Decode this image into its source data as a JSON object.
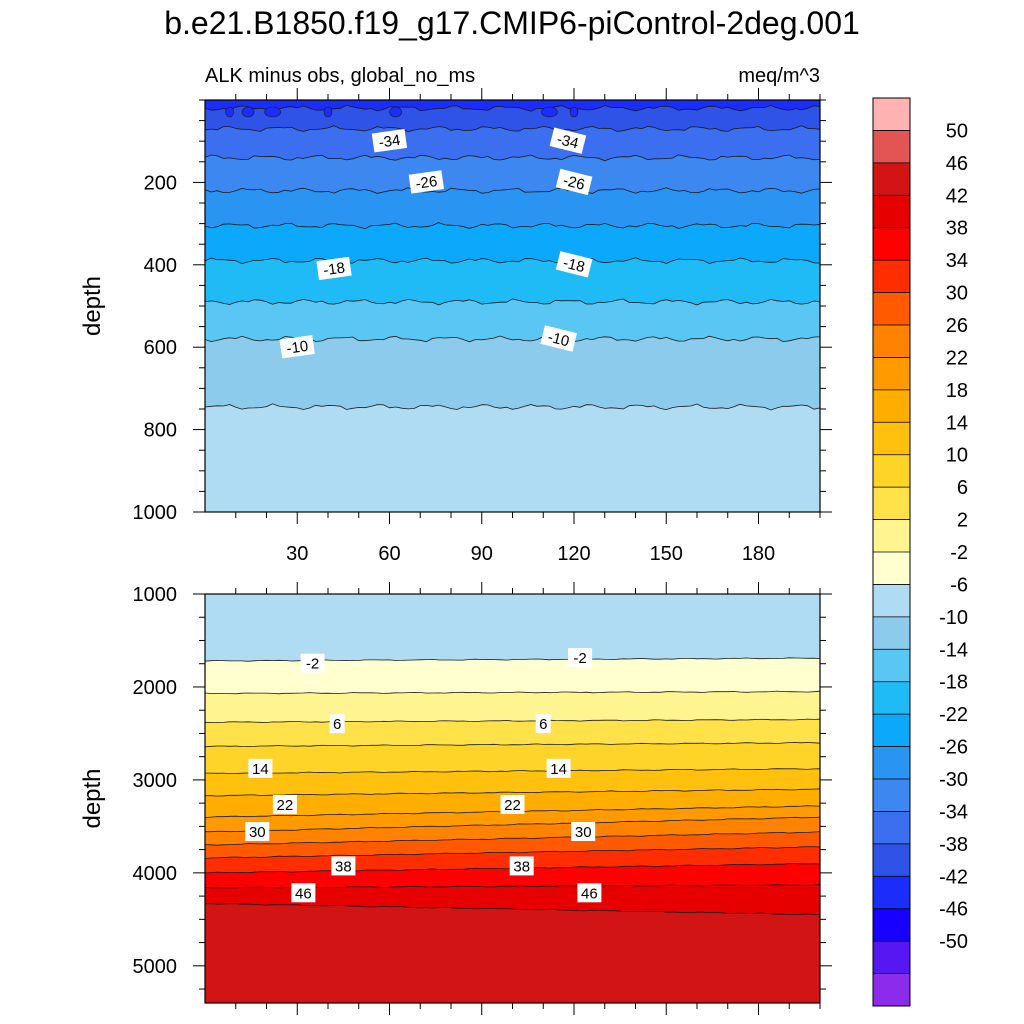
{
  "figure": {
    "title": "b.e21.B1850.f19_g17.CMIP6-piControl-2deg.001",
    "subtitle_left": "ALK minus obs, global_no_ms",
    "subtitle_right": "meq/m^3"
  },
  "colorbar": {
    "colors": [
      "#8c2cea",
      "#5518f2",
      "#1700ff",
      "#1a2dfa",
      "#2f53e6",
      "#3b6ff0",
      "#3d88f0",
      "#2a94f2",
      "#0ba8fb",
      "#1fbbf6",
      "#59c6f4",
      "#8dcbec",
      "#b0dcf3",
      "#ffffd0",
      "#fff590",
      "#ffe24a",
      "#ffd429",
      "#ffc10e",
      "#ffae00",
      "#ff9b00",
      "#ff8200",
      "#ff5a00",
      "#ff2d00",
      "#ff0000",
      "#e60000",
      "#d21414",
      "#e35555",
      "#ffb2b2"
    ],
    "labels": [
      "50",
      "46",
      "42",
      "38",
      "34",
      "30",
      "26",
      "22",
      "18",
      "14",
      "10",
      "6",
      "2",
      "-2",
      "-6",
      "-10",
      "-14",
      "-18",
      "-22",
      "-26",
      "-30",
      "-34",
      "-38",
      "-42",
      "-46",
      "-50"
    ]
  },
  "chart_data": [
    {
      "type": "contour",
      "panel": "upper",
      "title": "ALK minus obs, global_no_ms",
      "units": "meq/m^3",
      "ylabel": "depth",
      "xlim": [
        0,
        200
      ],
      "ylim": [
        1000,
        0
      ],
      "y_reversed": true,
      "xticks": [
        30,
        60,
        90,
        120,
        150,
        180
      ],
      "xtick_labels": [
        "30",
        "60",
        "90",
        "120",
        "150",
        "180"
      ],
      "yticks": [
        200,
        400,
        600,
        800,
        1000
      ],
      "ytick_labels": [
        "200",
        "400",
        "600",
        "800",
        "1000"
      ],
      "contour_interval": 4,
      "contour_boundaries": [
        {
          "level": -38,
          "depth": 20
        },
        {
          "level": -34,
          "depth": 70
        },
        {
          "level": -30,
          "depth": 140
        },
        {
          "level": -26,
          "depth": 220
        },
        {
          "level": -22,
          "depth": 305
        },
        {
          "level": -18,
          "depth": 390
        },
        {
          "level": -14,
          "depth": 490
        },
        {
          "level": -10,
          "depth": 580
        },
        {
          "level": -6,
          "depth": 745
        }
      ],
      "contour_labels": [
        {
          "text": "-34",
          "x": 60,
          "depth": 100
        },
        {
          "text": "-34",
          "x": 118,
          "depth": 100
        },
        {
          "text": "-26",
          "x": 72,
          "depth": 200
        },
        {
          "text": "-26",
          "x": 120,
          "depth": 200
        },
        {
          "text": "-18",
          "x": 42,
          "depth": 410
        },
        {
          "text": "-18",
          "x": 120,
          "depth": 400
        },
        {
          "text": "-10",
          "x": 30,
          "depth": 600
        },
        {
          "text": "-10",
          "x": 115,
          "depth": 580
        }
      ]
    },
    {
      "type": "contour",
      "panel": "lower",
      "ylabel": "depth",
      "xlim": [
        0,
        200
      ],
      "ylim": [
        5400,
        1000
      ],
      "y_reversed": true,
      "yticks": [
        1000,
        2000,
        3000,
        4000,
        5000
      ],
      "ytick_labels": [
        "1000",
        "2000",
        "3000",
        "4000",
        "5000"
      ],
      "contour_interval": 4,
      "contour_boundaries": [
        {
          "level": -2,
          "depth": [
            1720,
            1690
          ]
        },
        {
          "level": 2,
          "depth": [
            2070,
            2050
          ]
        },
        {
          "level": 6,
          "depth": [
            2380,
            2350
          ]
        },
        {
          "level": 10,
          "depth": [
            2640,
            2600
          ]
        },
        {
          "level": 14,
          "depth": [
            2930,
            2880
          ]
        },
        {
          "level": 18,
          "depth": [
            3170,
            3100
          ]
        },
        {
          "level": 22,
          "depth": [
            3400,
            3280
          ]
        },
        {
          "level": 26,
          "depth": [
            3560,
            3400
          ]
        },
        {
          "level": 30,
          "depth": [
            3700,
            3560
          ]
        },
        {
          "level": 34,
          "depth": [
            3840,
            3720
          ]
        },
        {
          "level": 38,
          "depth": [
            4000,
            3900
          ]
        },
        {
          "level": 42,
          "depth": [
            4160,
            4130
          ]
        },
        {
          "level": 46,
          "depth": [
            4330,
            4450
          ]
        }
      ],
      "contour_labels": [
        {
          "text": "-2",
          "x": 35,
          "depth": 1750
        },
        {
          "text": "-2",
          "x": 122,
          "depth": 1690
        },
        {
          "text": "6",
          "x": 43,
          "depth": 2400
        },
        {
          "text": "6",
          "x": 110,
          "depth": 2400
        },
        {
          "text": "14",
          "x": 18,
          "depth": 2880
        },
        {
          "text": "14",
          "x": 115,
          "depth": 2880
        },
        {
          "text": "22",
          "x": 26,
          "depth": 3270
        },
        {
          "text": "22",
          "x": 100,
          "depth": 3270
        },
        {
          "text": "30",
          "x": 17,
          "depth": 3560
        },
        {
          "text": "30",
          "x": 123,
          "depth": 3560
        },
        {
          "text": "38",
          "x": 45,
          "depth": 3930
        },
        {
          "text": "38",
          "x": 103,
          "depth": 3930
        },
        {
          "text": "46",
          "x": 32,
          "depth": 4220
        },
        {
          "text": "46",
          "x": 125,
          "depth": 4220
        }
      ]
    }
  ]
}
